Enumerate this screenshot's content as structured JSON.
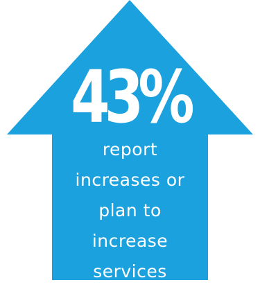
{
  "infographic": {
    "value": "43%",
    "caption_lines": [
      "report",
      "increases or",
      "plan to",
      "increase",
      "services"
    ],
    "arrow_color": "#1BA1DD",
    "text_color": "#FFFFFF",
    "arrow_shape": "up-arrow-icon"
  }
}
